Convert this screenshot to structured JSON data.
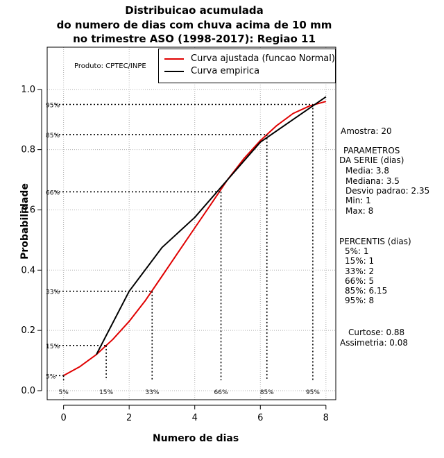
{
  "title": {
    "line1": "Distribuicao acumulada",
    "line2": "do numero de dias com chuva acima de 10 mm",
    "line3": "no trimestre ASO (1998-2017): Regiao 11"
  },
  "produto": "Produto: CPTEC/INPE",
  "legend": {
    "fitted": "Curva ajustada (funcao Normal)",
    "empirical": "Curva empirica"
  },
  "colors": {
    "fitted": "#e00000",
    "empirical": "#000000",
    "grid": "#b0b0b0"
  },
  "stats": {
    "amostra": "Amostra: 20",
    "parametros_title1": "PARAMETROS",
    "parametros_title2": "DA SERIE (dias)",
    "media": "Media: 3.8",
    "mediana": "Mediana: 3.5",
    "desvio": "Desvio padrao: 2.35",
    "min": "Min: 1",
    "max": "Max: 8",
    "percentis_title": "PERCENTIS (dias)",
    "p5": "5%: 1",
    "p15": "15%: 1",
    "p33": "33%: 2",
    "p66": "66%: 5",
    "p85": "85%: 6.15",
    "p95": "95%: 8",
    "curtose": "Curtose: 0.88",
    "assimetria": "Assimetria: 0.08"
  },
  "chart_data": {
    "type": "line",
    "xlabel": "Numero de dias",
    "ylabel": "Probabilidade",
    "xlim": [
      -0.5,
      8.3
    ],
    "ylim": [
      -0.03,
      1.14
    ],
    "xticks": [
      0,
      2,
      4,
      6,
      8
    ],
    "xtick_labels": [
      "0",
      "2",
      "4",
      "6",
      "8"
    ],
    "yticks": [
      0.0,
      0.2,
      0.4,
      0.6,
      0.8,
      1.0
    ],
    "ytick_labels": [
      "0.0",
      "0.2",
      "0.4",
      "0.6",
      "0.8",
      "1.0"
    ],
    "grid": true,
    "series": [
      {
        "name": "Curva ajustada (funcao Normal)",
        "color": "#e00000",
        "x": [
          0,
          0.5,
          1,
          1.5,
          2,
          2.5,
          3,
          3.5,
          4,
          4.5,
          5,
          5.5,
          6,
          6.5,
          7,
          7.5,
          8
        ],
        "y": [
          0.05,
          0.08,
          0.12,
          0.17,
          0.23,
          0.3,
          0.38,
          0.46,
          0.54,
          0.62,
          0.7,
          0.77,
          0.83,
          0.88,
          0.92,
          0.945,
          0.96
        ]
      },
      {
        "name": "Curva empirica",
        "color": "#000000",
        "x": [
          1,
          2,
          3,
          4,
          5,
          6,
          7,
          8
        ],
        "y": [
          0.12,
          0.33,
          0.475,
          0.575,
          0.7,
          0.825,
          0.9,
          0.975
        ]
      }
    ],
    "percentile_marks": [
      {
        "label": "5%",
        "prob": 0.05,
        "x": 0.0
      },
      {
        "label": "15%",
        "prob": 0.15,
        "x": 1.3
      },
      {
        "label": "33%",
        "prob": 0.33,
        "x": 2.7
      },
      {
        "label": "66%",
        "prob": 0.66,
        "x": 4.8
      },
      {
        "label": "85%",
        "prob": 0.85,
        "x": 6.2
      },
      {
        "label": "95%",
        "prob": 0.95,
        "x": 7.6
      }
    ]
  }
}
